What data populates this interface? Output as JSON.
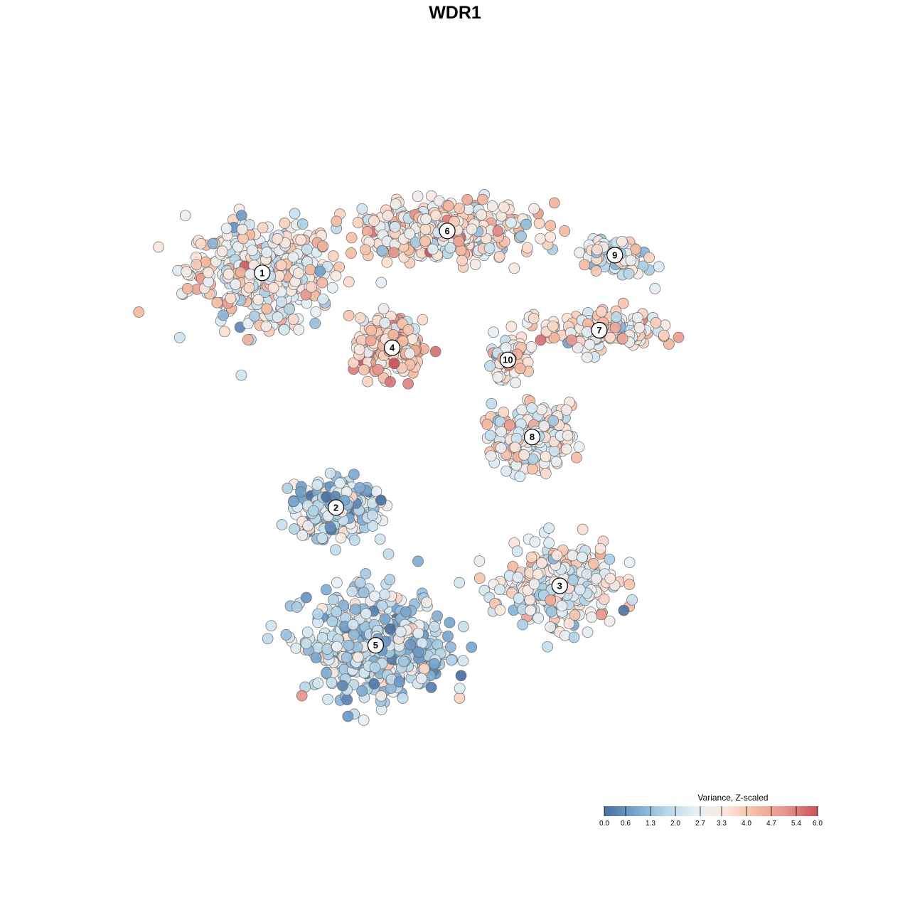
{
  "chart_data": {
    "type": "scatter",
    "title": "WDR1",
    "xlabel": "",
    "ylabel": "",
    "grid": false,
    "legend": {
      "title": "Variance, Z-scaled",
      "placement": "bottom-right",
      "range": [
        0,
        6
      ],
      "ticks": [
        "0.0",
        "0.6",
        "1.3",
        "2.0",
        "2.7",
        "3.3",
        "4.0",
        "4.7",
        "5.4",
        "6.0"
      ],
      "tick_values": [
        0.0,
        0.6,
        1.3,
        2.0,
        2.7,
        3.3,
        4.0,
        4.7,
        5.4,
        6.0
      ],
      "colors": [
        "#4a6fa0",
        "#76a4cd",
        "#b4d4e6",
        "#e6f0f6",
        "#fbe6dc",
        "#f4b9a0",
        "#e6928b",
        "#c9515d"
      ]
    },
    "clusters": [
      {
        "label": "1",
        "x": -17.5,
        "y": 17.5,
        "mean": 3.0
      },
      {
        "label": "2",
        "x": -10.8,
        "y": -3.8,
        "mean": 1.8
      },
      {
        "label": "3",
        "x": 9.5,
        "y": -10.9,
        "mean": 2.7
      },
      {
        "label": "4",
        "x": -5.7,
        "y": 10.7,
        "mean": 3.9
      },
      {
        "label": "5",
        "x": -7.2,
        "y": -16.3,
        "mean": 1.9
      },
      {
        "label": "6",
        "x": -0.7,
        "y": 21.3,
        "mean": 3.4
      },
      {
        "label": "7",
        "x": 13.1,
        "y": 12.3,
        "mean": 3.3
      },
      {
        "label": "8",
        "x": 7.0,
        "y": 2.6,
        "mean": 3.0
      },
      {
        "label": "9",
        "x": 14.5,
        "y": 19.1,
        "mean": 2.6
      },
      {
        "label": "10",
        "x": 4.8,
        "y": 9.6,
        "mean": 2.9
      }
    ]
  }
}
